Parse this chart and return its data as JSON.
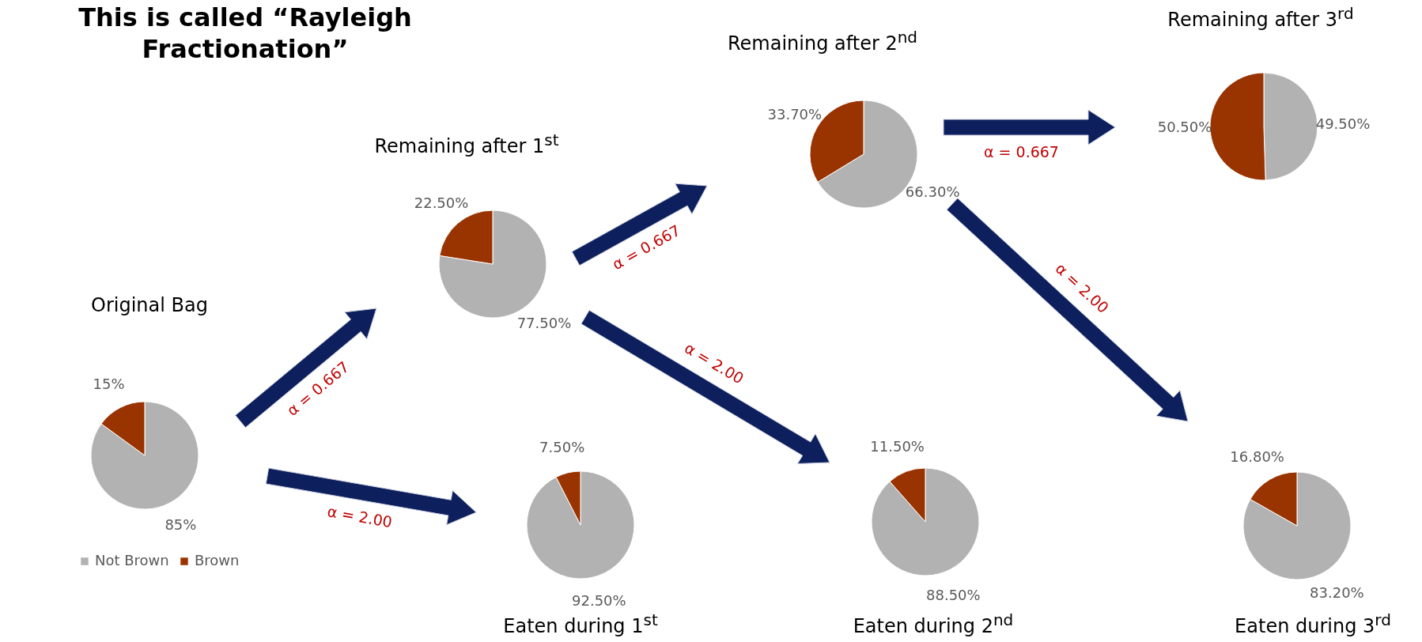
{
  "chart_data": [
    {
      "type": "other",
      "title": "This is called “Rayleigh Fractionation”"
    },
    {
      "type": "pie",
      "title": "Original Bag",
      "categories": [
        "Not Brown",
        "Brown"
      ],
      "values": [
        85,
        15
      ],
      "colors": [
        "#b2b2b2",
        "#993300"
      ],
      "value_labels": [
        "85%",
        "15%"
      ],
      "legend": "bottom",
      "annotations": [
        "α = 0.667",
        "α = 2.00"
      ]
    },
    {
      "type": "pie",
      "title": "Remaining after 1$^{st}$",
      "categories": [
        null,
        null
      ],
      "values": [
        77.5,
        22.5
      ],
      "colors": [
        "#b2b2b2",
        "#993300"
      ],
      "value_labels": [
        "77.50%",
        "22.50%"
      ],
      "annotations": [
        "α = 0.667",
        "α = 2.00"
      ]
    },
    {
      "type": "pie",
      "title": "Eaten during 1$^{st}$",
      "categories": [
        null,
        null
      ],
      "values": [
        92.5,
        7.5
      ],
      "colors": [
        "#b2b2b2",
        "#993300"
      ],
      "value_labels": [
        "92.50%",
        "7.50%"
      ]
    },
    {
      "type": "pie",
      "title": "Remaining after 2$^{nd}$",
      "categories": [
        null,
        null
      ],
      "values": [
        66.3,
        33.7
      ],
      "colors": [
        "#b2b2b2",
        "#993300"
      ],
      "value_labels": [
        "66.30%",
        "33.70%"
      ],
      "annotations": [
        "α = 0.667",
        "α = 2.00"
      ]
    },
    {
      "type": "pie",
      "title": "Eaten during 2$^{nd}$",
      "categories": [
        null,
        null
      ],
      "values": [
        88.5,
        11.5
      ],
      "colors": [
        "#b2b2b2",
        "#993300"
      ],
      "value_labels": [
        "88.50%",
        "11.50%"
      ]
    },
    {
      "type": "pie",
      "title": "Remaining after 3$^{rd}$",
      "categories": [
        null,
        null
      ],
      "values": [
        49.5,
        50.5
      ],
      "colors": [
        "#b2b2b2",
        "#993300"
      ],
      "value_labels": [
        "49.50%",
        "50.50%"
      ]
    },
    {
      "type": "pie",
      "title": "Eaten during 3$^{rd}$",
      "categories": [
        null,
        null
      ],
      "values": [
        83.2,
        16.8
      ],
      "colors": [
        "#b2b2b2",
        "#993300"
      ],
      "value_labels": [
        "83.20%",
        "16.80%"
      ]
    }
  ]
}
